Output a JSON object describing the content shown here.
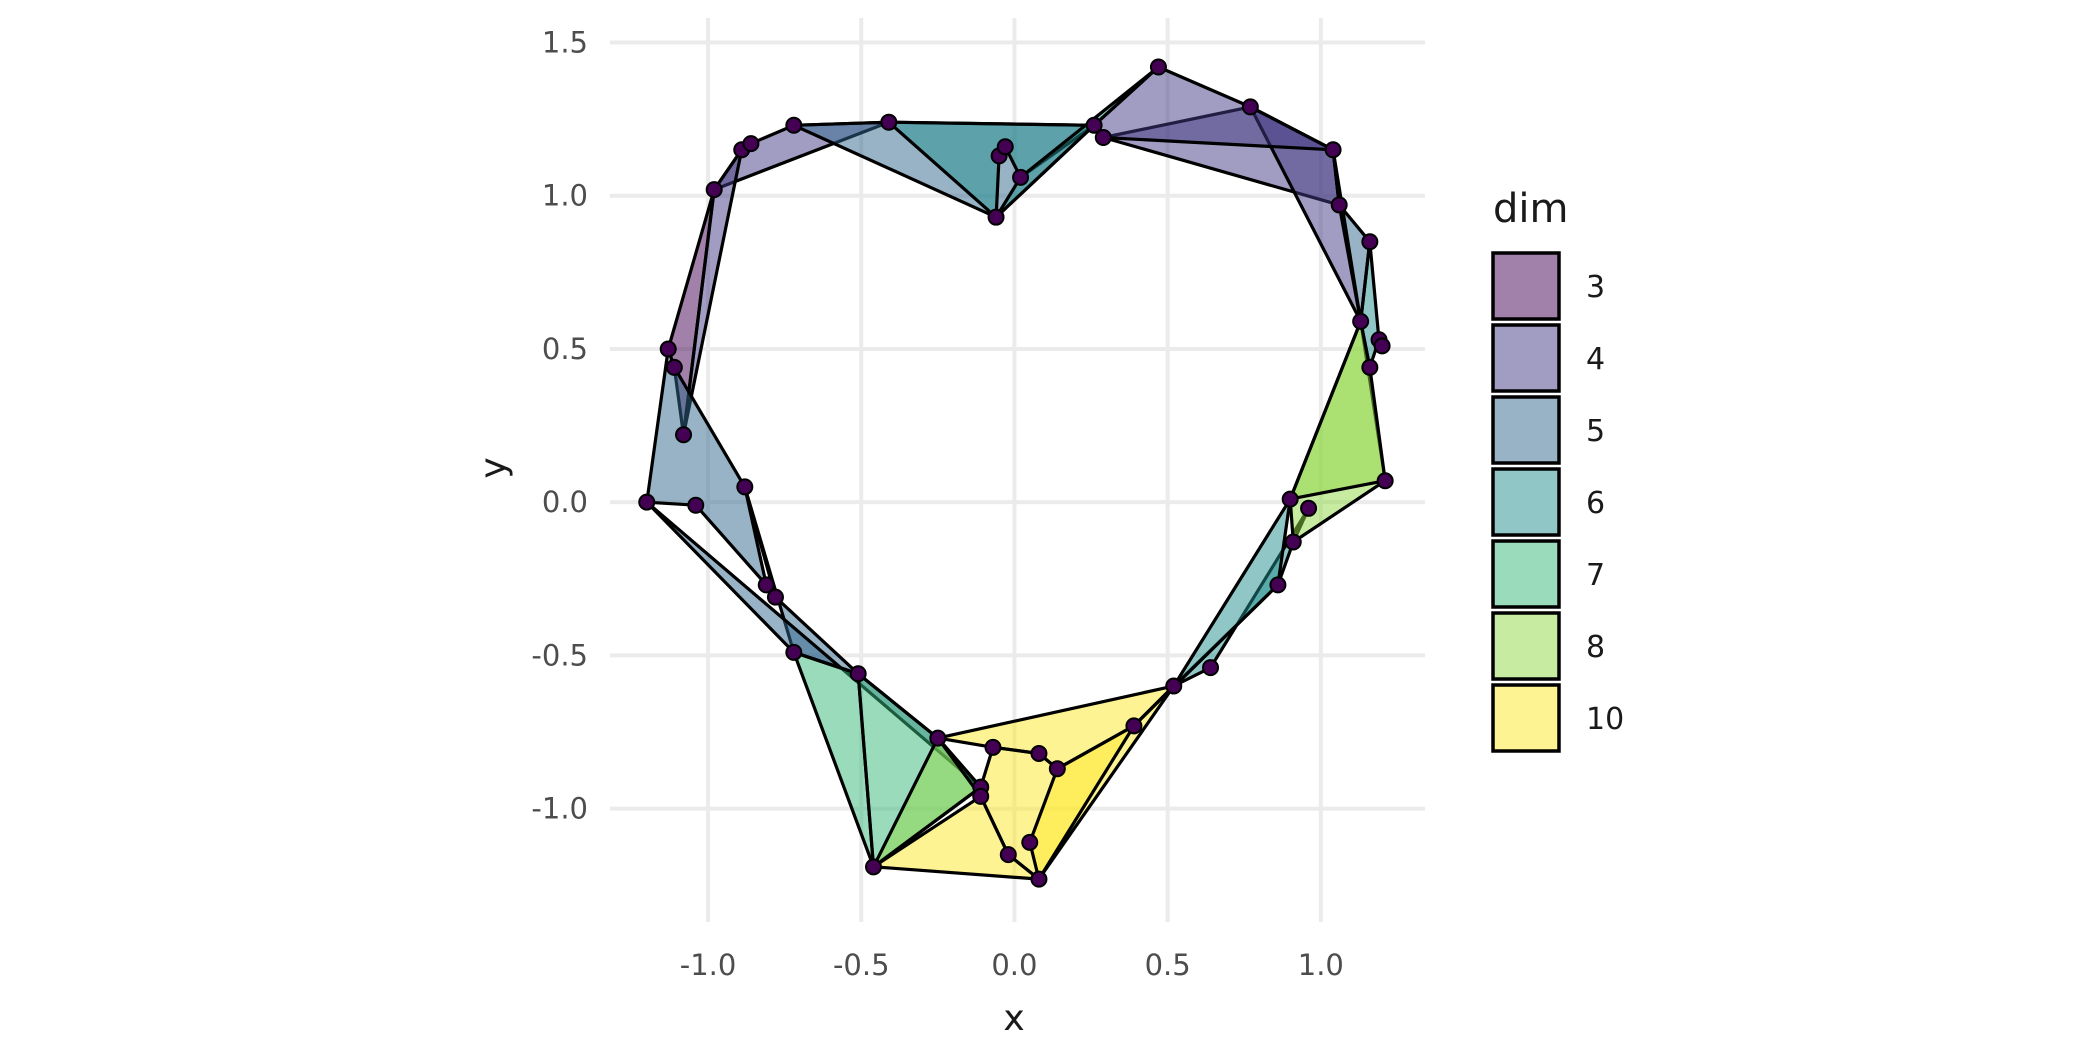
{
  "chart_data": {
    "type": "polygon",
    "title": "",
    "xlabel": "x",
    "ylabel": "y",
    "xlim": [
      -1.32,
      1.34
    ],
    "ylim": [
      -1.37,
      1.58
    ],
    "x_ticks": [
      -1.0,
      -0.5,
      0.0,
      0.5,
      1.0
    ],
    "x_tick_labels": [
      "-1.0",
      "-0.5",
      "0.0",
      "0.5",
      "1.0"
    ],
    "y_ticks": [
      -1.0,
      -0.5,
      0.0,
      0.5,
      1.0,
      1.5
    ],
    "y_tick_labels": [
      "-1.0",
      "-0.5",
      "0.0",
      "0.5",
      "1.0",
      "1.5"
    ],
    "grid": true,
    "legend": {
      "title": "dim",
      "placement": "right",
      "entries": [
        {
          "label": "3",
          "color": "#440154"
        },
        {
          "label": "4",
          "color": "#443a83"
        },
        {
          "label": "5",
          "color": "#31688e"
        },
        {
          "label": "6",
          "color": "#21908d"
        },
        {
          "label": "7",
          "color": "#35b779"
        },
        {
          "label": "8",
          "color": "#8fd744"
        },
        {
          "label": "10",
          "color": "#fde725"
        }
      ]
    },
    "point_color": "#440154",
    "points": [
      [
        -1.2,
        0.0
      ],
      [
        -1.13,
        0.5
      ],
      [
        -1.11,
        0.44
      ],
      [
        -1.08,
        0.22
      ],
      [
        -1.04,
        -0.01
      ],
      [
        -0.98,
        1.02
      ],
      [
        -0.88,
        0.05
      ],
      [
        -0.89,
        1.15
      ],
      [
        -0.86,
        1.17
      ],
      [
        -0.81,
        -0.27
      ],
      [
        -0.78,
        -0.31
      ],
      [
        -0.72,
        -0.49
      ],
      [
        -0.72,
        1.23
      ],
      [
        -0.51,
        -0.56
      ],
      [
        -0.46,
        -1.19
      ],
      [
        -0.41,
        1.24
      ],
      [
        -0.25,
        -0.77
      ],
      [
        -0.11,
        -0.93
      ],
      [
        -0.11,
        -0.96
      ],
      [
        -0.07,
        -0.8
      ],
      [
        -0.06,
        0.93
      ],
      [
        -0.05,
        1.13
      ],
      [
        -0.03,
        1.16
      ],
      [
        0.02,
        1.06
      ],
      [
        -0.02,
        -1.15
      ],
      [
        0.05,
        -1.11
      ],
      [
        0.08,
        -0.82
      ],
      [
        0.08,
        -1.23
      ],
      [
        0.14,
        -0.87
      ],
      [
        0.26,
        1.23
      ],
      [
        0.29,
        1.19
      ],
      [
        0.39,
        -0.73
      ],
      [
        0.47,
        1.42
      ],
      [
        0.52,
        -0.6
      ],
      [
        0.64,
        -0.54
      ],
      [
        0.77,
        1.29
      ],
      [
        0.86,
        -0.27
      ],
      [
        0.9,
        0.01
      ],
      [
        0.91,
        -0.13
      ],
      [
        0.96,
        -0.02
      ],
      [
        1.04,
        1.15
      ],
      [
        1.06,
        0.97
      ],
      [
        1.13,
        0.59
      ],
      [
        1.16,
        0.44
      ],
      [
        1.16,
        0.85
      ],
      [
        1.19,
        0.53
      ],
      [
        1.2,
        0.51
      ],
      [
        1.21,
        0.07
      ]
    ],
    "polygons": [
      {
        "dim": "3",
        "vertices": [
          [
            -0.98,
            1.02
          ],
          [
            -1.13,
            0.5
          ],
          [
            -1.11,
            0.44
          ],
          [
            -1.08,
            0.22
          ]
        ]
      },
      {
        "dim": "4",
        "vertices": [
          [
            -0.98,
            1.02
          ],
          [
            -0.89,
            1.15
          ],
          [
            -0.86,
            1.17
          ],
          [
            -0.72,
            1.23
          ],
          [
            -0.41,
            1.24
          ]
        ]
      },
      {
        "dim": "4",
        "vertices": [
          [
            -0.98,
            1.02
          ],
          [
            -1.08,
            0.22
          ],
          [
            -0.89,
            1.15
          ]
        ]
      },
      {
        "dim": "4",
        "vertices": [
          [
            0.29,
            1.19
          ],
          [
            0.77,
            1.29
          ],
          [
            1.04,
            1.15
          ],
          [
            1.06,
            0.97
          ]
        ]
      },
      {
        "dim": "4",
        "vertices": [
          [
            0.77,
            1.29
          ],
          [
            1.04,
            1.15
          ],
          [
            1.06,
            0.97
          ],
          [
            1.13,
            0.59
          ]
        ]
      },
      {
        "dim": "4",
        "vertices": [
          [
            0.26,
            1.23
          ],
          [
            0.47,
            1.42
          ],
          [
            0.77,
            1.29
          ],
          [
            1.04,
            1.15
          ],
          [
            0.29,
            1.19
          ]
        ]
      },
      {
        "dim": "5",
        "vertices": [
          [
            -0.41,
            1.24
          ],
          [
            -0.72,
            1.23
          ],
          [
            -0.06,
            0.93
          ],
          [
            0.26,
            1.23
          ]
        ]
      },
      {
        "dim": "5",
        "vertices": [
          [
            -0.88,
            0.05
          ],
          [
            -0.78,
            -0.31
          ],
          [
            -0.51,
            -0.56
          ],
          [
            -0.72,
            -0.49
          ]
        ]
      },
      {
        "dim": "5",
        "vertices": [
          [
            -1.2,
            0.0
          ],
          [
            -0.72,
            -0.49
          ],
          [
            -0.51,
            -0.56
          ],
          [
            -0.25,
            -0.77
          ],
          [
            -0.11,
            -0.93
          ]
        ]
      },
      {
        "dim": "5",
        "vertices": [
          [
            -1.2,
            0.0
          ],
          [
            -1.13,
            0.5
          ],
          [
            -1.11,
            0.44
          ],
          [
            -0.88,
            0.05
          ],
          [
            -0.81,
            -0.27
          ],
          [
            -1.04,
            -0.01
          ]
        ]
      },
      {
        "dim": "5",
        "vertices": [
          [
            1.04,
            1.15
          ],
          [
            1.06,
            0.97
          ],
          [
            1.16,
            0.85
          ],
          [
            1.13,
            0.59
          ]
        ]
      },
      {
        "dim": "6",
        "vertices": [
          [
            -0.41,
            1.24
          ],
          [
            0.26,
            1.23
          ],
          [
            0.02,
            1.06
          ],
          [
            -0.03,
            1.16
          ],
          [
            -0.05,
            1.13
          ],
          [
            -0.06,
            0.93
          ]
        ]
      },
      {
        "dim": "6",
        "vertices": [
          [
            -0.06,
            0.93
          ],
          [
            0.02,
            1.06
          ],
          [
            0.47,
            1.42
          ],
          [
            0.26,
            1.23
          ]
        ]
      },
      {
        "dim": "6",
        "vertices": [
          [
            0.52,
            -0.6
          ],
          [
            0.86,
            -0.27
          ],
          [
            0.91,
            -0.13
          ],
          [
            0.96,
            -0.02
          ],
          [
            0.64,
            -0.54
          ]
        ]
      },
      {
        "dim": "6",
        "vertices": [
          [
            1.13,
            0.59
          ],
          [
            1.16,
            0.85
          ],
          [
            1.19,
            0.53
          ],
          [
            1.16,
            0.44
          ]
        ]
      },
      {
        "dim": "6",
        "vertices": [
          [
            0.39,
            -0.73
          ],
          [
            0.52,
            -0.6
          ],
          [
            0.9,
            0.01
          ],
          [
            0.86,
            -0.27
          ]
        ]
      },
      {
        "dim": "7",
        "vertices": [
          [
            -0.72,
            -0.49
          ],
          [
            -0.51,
            -0.56
          ],
          [
            -0.46,
            -1.19
          ]
        ]
      },
      {
        "dim": "7",
        "vertices": [
          [
            -0.51,
            -0.56
          ],
          [
            -0.25,
            -0.77
          ],
          [
            -0.11,
            -0.93
          ],
          [
            -0.46,
            -1.19
          ]
        ]
      },
      {
        "dim": "8",
        "vertices": [
          [
            0.9,
            0.01
          ],
          [
            1.13,
            0.59
          ],
          [
            1.21,
            0.07
          ],
          [
            0.91,
            -0.13
          ]
        ]
      },
      {
        "dim": "8",
        "vertices": [
          [
            0.9,
            0.01
          ],
          [
            1.13,
            0.59
          ],
          [
            1.16,
            0.44
          ],
          [
            1.21,
            0.07
          ]
        ]
      },
      {
        "dim": "8",
        "vertices": [
          [
            -0.46,
            -1.19
          ],
          [
            -0.25,
            -0.77
          ],
          [
            -0.11,
            -0.96
          ],
          [
            -0.11,
            -0.93
          ]
        ]
      },
      {
        "dim": "10",
        "vertices": [
          [
            -0.25,
            -0.77
          ],
          [
            0.52,
            -0.6
          ],
          [
            0.39,
            -0.73
          ],
          [
            0.14,
            -0.87
          ],
          [
            0.08,
            -0.82
          ],
          [
            -0.07,
            -0.8
          ]
        ]
      },
      {
        "dim": "10",
        "vertices": [
          [
            -0.07,
            -0.8
          ],
          [
            0.08,
            -0.82
          ],
          [
            0.14,
            -0.87
          ],
          [
            0.39,
            -0.73
          ],
          [
            0.52,
            -0.6
          ],
          [
            0.08,
            -1.23
          ],
          [
            -0.02,
            -1.15
          ],
          [
            -0.11,
            -0.96
          ],
          [
            -0.11,
            -0.93
          ]
        ]
      },
      {
        "dim": "10",
        "vertices": [
          [
            -0.46,
            -1.19
          ],
          [
            -0.11,
            -0.96
          ],
          [
            -0.02,
            -1.15
          ],
          [
            0.08,
            -1.23
          ]
        ]
      },
      {
        "dim": "10",
        "vertices": [
          [
            0.08,
            -1.23
          ],
          [
            0.05,
            -1.11
          ],
          [
            0.14,
            -0.87
          ],
          [
            0.39,
            -0.73
          ]
        ]
      }
    ]
  }
}
